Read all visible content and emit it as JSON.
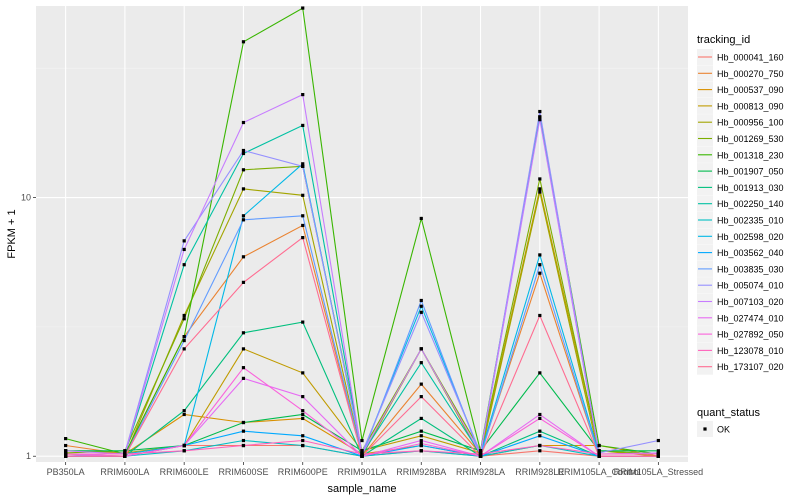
{
  "chart_data": {
    "type": "line",
    "title": "",
    "xlabel": "sample_name",
    "ylabel": "FPKM + 1",
    "yscale": "log10",
    "ylim": [
      0.95,
      55
    ],
    "y_ticks": [
      1,
      10
    ],
    "y_tick_labels": [
      "1",
      "10"
    ],
    "categories": [
      "PB350LA",
      "RRIM600LA",
      "RRIM600LE",
      "RRIM600SE",
      "RRIM600PE",
      "RRIM901LA",
      "RRIM928BA",
      "RRIM928LA",
      "RRIM928LE",
      "RRIM105LA_Control",
      "RRIM105LA_Stressed"
    ],
    "legend_title": "tracking_id",
    "legend2_title": "quant_status",
    "legend2_item": "OK",
    "grid": true,
    "legend_position": "right",
    "series": [
      {
        "name": "Hb_000041_160",
        "color": "#F8766D",
        "values": [
          1.02,
          1.0,
          1.1,
          1.1,
          1.1,
          1.0,
          1.05,
          1.0,
          1.05,
          1.0,
          1.0
        ]
      },
      {
        "name": "Hb_000270_750",
        "color": "#EA8331",
        "values": [
          1.1,
          1.02,
          2.9,
          5.9,
          7.8,
          1.0,
          1.9,
          1.02,
          5.1,
          1.0,
          1.0
        ]
      },
      {
        "name": "Hb_000537_090",
        "color": "#D89000",
        "values": [
          1.02,
          1.02,
          1.45,
          1.35,
          1.4,
          1.02,
          1.1,
          1.0,
          1.1,
          1.1,
          1.0
        ]
      },
      {
        "name": "Hb_000813_090",
        "color": "#C09B00",
        "values": [
          1.05,
          1.03,
          1.1,
          2.6,
          2.1,
          1.05,
          1.2,
          1.03,
          10.8,
          1.05,
          1.0
        ]
      },
      {
        "name": "Hb_000956_100",
        "color": "#A3A500",
        "values": [
          1.0,
          1.0,
          3.5,
          10.8,
          10.2,
          1.0,
          2.6,
          1.0,
          10.5,
          1.0,
          1.0
        ]
      },
      {
        "name": "Hb_001269_530",
        "color": "#7CAE00",
        "values": [
          1.03,
          1.05,
          3.4,
          12.8,
          13.2,
          1.05,
          2.6,
          1.05,
          11.8,
          1.05,
          1.02
        ]
      },
      {
        "name": "Hb_001318_230",
        "color": "#39B600",
        "values": [
          1.17,
          1.02,
          2.9,
          40.0,
          54.0,
          1.15,
          8.3,
          1.05,
          20.5,
          1.1,
          1.02
        ]
      },
      {
        "name": "Hb_001907_050",
        "color": "#00BB4E",
        "values": [
          1.05,
          1.05,
          1.1,
          1.35,
          1.45,
          1.05,
          1.25,
          1.05,
          2.1,
          1.05,
          1.05
        ]
      },
      {
        "name": "Hb_001913_030",
        "color": "#00BF7D",
        "values": [
          1.0,
          1.0,
          1.5,
          3.0,
          3.3,
          1.0,
          1.4,
          1.0,
          1.25,
          1.0,
          1.0
        ]
      },
      {
        "name": "Hb_002250_140",
        "color": "#00C1A3",
        "values": [
          1.02,
          1.02,
          5.5,
          14.8,
          19.0,
          1.02,
          2.3,
          1.02,
          20.5,
          1.02,
          1.02
        ]
      },
      {
        "name": "Hb_002335_010",
        "color": "#00BFC4",
        "values": [
          1.0,
          1.0,
          1.05,
          1.15,
          1.1,
          1.0,
          1.05,
          1.0,
          1.1,
          1.0,
          1.0
        ]
      },
      {
        "name": "Hb_002598_020",
        "color": "#00B8E7",
        "values": [
          1.02,
          1.02,
          1.1,
          8.5,
          13.5,
          1.02,
          3.8,
          1.02,
          6.0,
          1.02,
          1.02
        ]
      },
      {
        "name": "Hb_003562_040",
        "color": "#00A9FF",
        "values": [
          1.0,
          1.0,
          1.1,
          1.25,
          1.2,
          1.0,
          1.1,
          1.0,
          1.2,
          1.0,
          1.0
        ]
      },
      {
        "name": "Hb_003835_030",
        "color": "#619CFF",
        "values": [
          1.0,
          1.0,
          2.8,
          8.2,
          8.5,
          1.0,
          4.0,
          1.0,
          5.5,
          1.0,
          1.0
        ]
      },
      {
        "name": "Hb_005074_010",
        "color": "#9590FF",
        "values": [
          1.0,
          1.03,
          6.8,
          15.2,
          13.2,
          1.03,
          3.6,
          1.03,
          21.5,
          1.03,
          1.15
        ]
      },
      {
        "name": "Hb_007103_020",
        "color": "#C77CFF",
        "values": [
          1.05,
          1.02,
          6.3,
          19.5,
          25.0,
          1.02,
          2.6,
          1.02,
          20.0,
          1.02,
          1.03
        ]
      },
      {
        "name": "Hb_027474_010",
        "color": "#E76BF3",
        "values": [
          1.02,
          1.0,
          1.1,
          2.0,
          1.7,
          1.0,
          1.15,
          1.0,
          1.45,
          1.0,
          1.0
        ]
      },
      {
        "name": "Hb_027892_050",
        "color": "#FA62DB",
        "values": [
          1.0,
          1.0,
          1.1,
          2.2,
          1.5,
          1.0,
          1.12,
          1.0,
          1.4,
          1.0,
          1.0
        ]
      },
      {
        "name": "Hb_123078_010",
        "color": "#FF62BC",
        "values": [
          1.02,
          1.02,
          1.05,
          1.1,
          1.15,
          1.02,
          1.05,
          1.02,
          1.1,
          1.02,
          1.02
        ]
      },
      {
        "name": "Hb_173107_020",
        "color": "#FF6C91",
        "values": [
          1.0,
          1.0,
          2.6,
          4.7,
          7.0,
          1.0,
          1.7,
          1.0,
          3.5,
          1.0,
          1.0
        ]
      }
    ]
  }
}
